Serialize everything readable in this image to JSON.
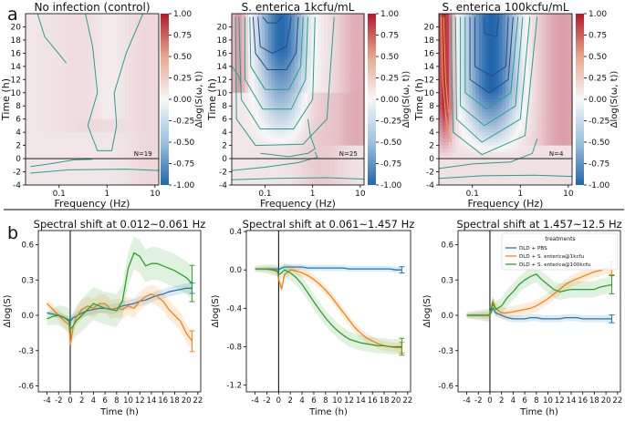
{
  "figure": {
    "panel_labels": [
      "a",
      "b"
    ],
    "colorbar": {
      "ticks": [
        "1.00",
        "0.75",
        "0.50",
        "0.25",
        "0.00",
        "-0.25",
        "-0.50",
        "-0.75",
        "-1.00"
      ],
      "label": "Δlog(S(ω, t))",
      "colors": {
        "max": "#b2182b",
        "mid": "#f7f7f7",
        "min": "#2166ac"
      }
    },
    "separator_color": "#000000"
  },
  "chart_data": [
    {
      "type": "heatmap",
      "title": "No infection (control)",
      "xlabel": "Frequency (Hz)",
      "ylabel": "Time (h)",
      "xscale": "log",
      "xlim": [
        0.02,
        12
      ],
      "ylim": [
        -4,
        22
      ],
      "x_ticks": [
        "0.1",
        "1",
        "10"
      ],
      "y_ticks": [
        "-4",
        "-2",
        "0",
        "2",
        "4",
        "6",
        "8",
        "10",
        "12",
        "14",
        "16",
        "18",
        "20"
      ],
      "annotation": "N=19",
      "zlim": [
        -1,
        1
      ],
      "contour_color": "#2a9d8f"
    },
    {
      "type": "heatmap",
      "title": "S. enterica 1kcfu/mL",
      "xlabel": "Frequency (Hz)",
      "ylabel": "Time (h)",
      "xscale": "log",
      "xlim": [
        0.02,
        12
      ],
      "ylim": [
        -4,
        22
      ],
      "x_ticks": [
        "0.1",
        "1",
        "10"
      ],
      "y_ticks": [
        "-4",
        "-2",
        "0",
        "2",
        "4",
        "6",
        "8",
        "10",
        "12",
        "14",
        "16",
        "18",
        "20"
      ],
      "annotation": "N=25",
      "zlim": [
        -1,
        1
      ],
      "contour_color": "#2a9d8f"
    },
    {
      "type": "heatmap",
      "title": "S. enterica 100kcfu/mL",
      "xlabel": "Frequency (Hz)",
      "ylabel": "Time (h)",
      "xscale": "log",
      "xlim": [
        0.02,
        12
      ],
      "ylim": [
        -4,
        22
      ],
      "x_ticks": [
        "0.1",
        "1",
        "10"
      ],
      "y_ticks": [
        "-4",
        "-2",
        "0",
        "2",
        "4",
        "6",
        "8",
        "10",
        "12",
        "14",
        "16",
        "18",
        "20"
      ],
      "annotation": "N=4",
      "zlim": [
        -1,
        1
      ],
      "contour_color": "#2a9d8f"
    },
    {
      "type": "line",
      "title": "Spectral shift at 0.012~0.061 Hz",
      "xlabel": "Time (h)",
      "ylabel": "Δlog⟨S⟩",
      "xlim": [
        -5.5,
        22.5
      ],
      "ylim": [
        -0.65,
        0.72
      ],
      "x_ticks": [
        -4,
        -2,
        0,
        2,
        4,
        6,
        8,
        10,
        12,
        14,
        16,
        18,
        20,
        22
      ],
      "x_tick_labels": [
        "-4",
        "-2",
        "0",
        "2",
        "4",
        "6",
        "8",
        "10",
        "12",
        "14",
        "16",
        "18",
        "20",
        "22"
      ],
      "y_ticks": [
        -0.6,
        -0.3,
        0.0,
        0.3,
        0.6
      ],
      "y_tick_labels": [
        "-0.6",
        "-0.3",
        "0.0",
        "0.3",
        "0.6"
      ],
      "vline_x": 0,
      "x": [
        -4,
        -3,
        -2,
        -1,
        -0.2,
        0,
        0.5,
        1,
        2,
        3,
        4,
        5,
        6,
        7,
        8,
        9,
        10,
        11,
        12,
        13,
        14,
        15,
        16,
        17,
        18,
        19,
        20,
        21
      ],
      "series": [
        {
          "name": "DLD + PBS",
          "color": "#1f77b4",
          "values": [
            0.02,
            0.01,
            0.0,
            -0.02,
            -0.04,
            -0.05,
            -0.02,
            -0.01,
            0.02,
            0.04,
            0.05,
            0.06,
            0.06,
            0.05,
            0.06,
            0.08,
            0.09,
            0.1,
            0.12,
            0.13,
            0.15,
            0.17,
            0.18,
            0.2,
            0.21,
            0.22,
            0.23,
            0.23
          ],
          "band": 0.04
        },
        {
          "name": "DLD + S. enterica@1kcfu",
          "color": "#ff7f0e",
          "values": [
            0.1,
            0.05,
            0.0,
            -0.05,
            -0.08,
            -0.25,
            -0.1,
            -0.02,
            0.05,
            0.08,
            0.06,
            0.1,
            0.1,
            0.05,
            0.06,
            0.05,
            0.08,
            0.06,
            0.12,
            0.16,
            0.18,
            0.16,
            0.12,
            0.05,
            0.0,
            -0.05,
            -0.15,
            -0.22
          ],
          "band": 0.08
        },
        {
          "name": "DLD + S. enterica@100kcfu",
          "color": "#2ca02c",
          "values": [
            -0.03,
            -0.01,
            0.0,
            -0.02,
            -0.05,
            -0.12,
            -0.09,
            -0.05,
            0.0,
            0.05,
            0.1,
            0.08,
            0.06,
            0.05,
            0.04,
            0.12,
            0.4,
            0.53,
            0.5,
            0.42,
            0.44,
            0.44,
            0.42,
            0.4,
            0.38,
            0.35,
            0.32,
            0.27
          ],
          "band": 0.14
        }
      ]
    },
    {
      "type": "line",
      "title": "Spectral shift at 0.061~1.457 Hz",
      "xlabel": "Time (h)",
      "ylabel": "Δlog⟨S⟩",
      "xlim": [
        -5.5,
        22.5
      ],
      "ylim": [
        -1.27,
        0.41
      ],
      "x_ticks": [
        -4,
        -2,
        0,
        2,
        4,
        6,
        8,
        10,
        12,
        14,
        16,
        18,
        20,
        22
      ],
      "x_tick_labels": [
        "-4",
        "-2",
        "0",
        "2",
        "4",
        "6",
        "8",
        "10",
        "12",
        "14",
        "16",
        "18",
        "20",
        "22"
      ],
      "y_ticks": [
        -1.2,
        -0.8,
        -0.4,
        0.0,
        0.4
      ],
      "y_tick_labels": [
        "-1.2",
        "-0.8",
        "-0.4",
        "0.0",
        "0.4"
      ],
      "vline_x": 0,
      "x": [
        -4,
        -3,
        -2,
        -1,
        -0.2,
        0,
        0.5,
        1,
        2,
        3,
        4,
        5,
        6,
        7,
        8,
        9,
        10,
        11,
        12,
        13,
        14,
        15,
        16,
        17,
        18,
        19,
        20,
        21
      ],
      "series": [
        {
          "name": "DLD + PBS",
          "color": "#1f77b4",
          "values": [
            0.01,
            0.01,
            0.01,
            0.01,
            0.01,
            0.0,
            0.02,
            0.03,
            0.03,
            0.03,
            0.03,
            0.02,
            0.02,
            0.02,
            0.02,
            0.02,
            0.02,
            0.02,
            0.01,
            0.01,
            0.01,
            0.01,
            0.01,
            0.01,
            0.01,
            0.01,
            0.0,
            0.0
          ],
          "band": 0.03
        },
        {
          "name": "DLD + S. enterica@1kcfu",
          "color": "#ff7f0e",
          "values": [
            0.01,
            0.01,
            0.01,
            0.0,
            -0.02,
            -0.1,
            -0.2,
            -0.05,
            0.0,
            -0.01,
            -0.03,
            -0.06,
            -0.1,
            -0.15,
            -0.21,
            -0.28,
            -0.36,
            -0.44,
            -0.52,
            -0.6,
            -0.66,
            -0.71,
            -0.74,
            -0.77,
            -0.79,
            -0.8,
            -0.81,
            -0.81
          ],
          "band": 0.05
        },
        {
          "name": "DLD + S. enterica@100kcfu",
          "color": "#2ca02c",
          "values": [
            0.01,
            0.01,
            0.01,
            0.0,
            -0.01,
            -0.05,
            -0.03,
            0.0,
            -0.03,
            -0.08,
            -0.15,
            -0.24,
            -0.33,
            -0.42,
            -0.5,
            -0.57,
            -0.63,
            -0.68,
            -0.72,
            -0.74,
            -0.76,
            -0.77,
            -0.78,
            -0.79,
            -0.79,
            -0.8,
            -0.8,
            -0.8
          ],
          "band": 0.08
        }
      ]
    },
    {
      "type": "line",
      "title": "Spectral shift at 1.457~12.5 Hz",
      "xlabel": "Time (h)",
      "ylabel": "Δlog⟨S⟩",
      "xlim": [
        -5.5,
        22.5
      ],
      "ylim": [
        -0.65,
        0.72
      ],
      "x_ticks": [
        -4,
        -2,
        0,
        2,
        4,
        6,
        8,
        10,
        12,
        14,
        16,
        18,
        20,
        22
      ],
      "x_tick_labels": [
        "-4",
        "-2",
        "0",
        "2",
        "4",
        "6",
        "8",
        "10",
        "12",
        "14",
        "16",
        "18",
        "20",
        "22"
      ],
      "y_ticks": [
        -0.6,
        -0.3,
        0.0,
        0.3,
        0.6
      ],
      "y_tick_labels": [
        "-0.6",
        "-0.3",
        "0.0",
        "0.3",
        "0.6"
      ],
      "vline_x": 0,
      "legend": {
        "title": "treatments",
        "placement": "top-right"
      },
      "x": [
        -4,
        -3,
        -2,
        -1,
        -0.2,
        0,
        0.5,
        1,
        2,
        3,
        4,
        5,
        6,
        7,
        8,
        9,
        10,
        11,
        12,
        13,
        14,
        15,
        16,
        17,
        18,
        19,
        20,
        21
      ],
      "series": [
        {
          "name": "DLD + PBS",
          "color": "#1f77b4",
          "values": [
            0.0,
            0.0,
            0.0,
            0.0,
            0.0,
            0.0,
            0.06,
            0.02,
            0.0,
            -0.02,
            -0.03,
            -0.03,
            -0.03,
            -0.02,
            -0.02,
            -0.03,
            -0.03,
            -0.03,
            -0.03,
            -0.02,
            -0.02,
            -0.02,
            -0.03,
            -0.03,
            -0.03,
            -0.03,
            -0.03,
            -0.03
          ],
          "band": 0.03
        },
        {
          "name": "DLD + S. enterica@1kcfu",
          "color": "#ff7f0e",
          "values": [
            0.0,
            0.0,
            0.0,
            0.0,
            0.0,
            0.0,
            0.12,
            0.06,
            0.02,
            0.02,
            0.03,
            0.04,
            0.05,
            0.06,
            0.08,
            0.11,
            0.14,
            0.18,
            0.22,
            0.26,
            0.29,
            0.31,
            0.33,
            0.35,
            0.37,
            0.38,
            0.4,
            0.4
          ],
          "band": 0.05
        },
        {
          "name": "DLD + S. enterica@100kcfu",
          "color": "#2ca02c",
          "values": [
            0.0,
            0.0,
            0.0,
            0.0,
            0.0,
            0.02,
            0.1,
            0.05,
            0.08,
            0.15,
            0.2,
            0.26,
            0.3,
            0.33,
            0.35,
            0.3,
            0.26,
            0.22,
            0.2,
            0.21,
            0.22,
            0.22,
            0.22,
            0.22,
            0.22,
            0.24,
            0.25,
            0.26
          ],
          "band": 0.07
        }
      ]
    }
  ]
}
